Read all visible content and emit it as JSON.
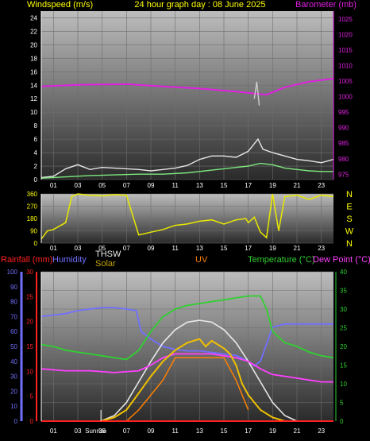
{
  "header": {
    "left_label": "Windspeed (m/s)",
    "center_title": "24 hour graph day : 08 June 2025",
    "right_label": "Barometer (mb)"
  },
  "colors": {
    "windspeed": "#e6e6e6",
    "gust": "#cccccc",
    "wind_avg": "#7de87d",
    "barometer": "#e020e0",
    "direction": "#e8e800",
    "humidity": "#7070ff",
    "thsw": "#e8e8e8",
    "solar": "#f0c000",
    "uv": "#ff8000",
    "temperature": "#30d030",
    "dewpoint": "#ff40ff",
    "rainfall": "#ff2020",
    "solar_theory": "#d0d0d0"
  },
  "lower_labels": {
    "rainfall": "Rainfall (mm)",
    "humidity": "Humidity",
    "thsw": "THSW",
    "solar": "Solar",
    "uv": "UV",
    "temperature": "Temperature (°C)",
    "dewpoint": "Dew Point (°C)",
    "sunrise": "Sunrise"
  },
  "chart_data": [
    {
      "type": "line",
      "name": "wind-barometer",
      "x_ticks": [
        "01",
        "03",
        "05",
        "07",
        "09",
        "11",
        "13",
        "15",
        "17",
        "19",
        "21",
        "23"
      ],
      "y_left_ticks": [
        0,
        2,
        4,
        6,
        8,
        10,
        12,
        14,
        16,
        18,
        20,
        22,
        24
      ],
      "y_left_range": [
        0,
        25
      ],
      "y_right_ticks": [
        975,
        980,
        985,
        990,
        995,
        1000,
        1005,
        1010,
        1015,
        1020,
        1025
      ],
      "y_right_range": [
        973.3,
        1027.5
      ],
      "series": [
        {
          "key": "barometer",
          "x": [
            0,
            3,
            7,
            10,
            13,
            16,
            18.5,
            20,
            22,
            24
          ],
          "values": [
            1003.3,
            1003.8,
            1004.0,
            1003.3,
            1002.6,
            1001.6,
            1000.6,
            1003.0,
            1004.8,
            1005.8
          ]
        },
        {
          "key": "windspeed",
          "x": [
            0,
            1,
            2,
            3,
            4,
            5,
            6,
            7,
            8,
            9,
            10,
            11,
            12,
            13,
            14,
            15,
            16,
            17,
            17.8,
            18.2,
            19,
            20,
            21,
            22,
            23,
            24
          ],
          "values": [
            0.3,
            0.5,
            1.6,
            2.2,
            1.5,
            1.8,
            1.7,
            1.6,
            1.5,
            1.3,
            1.5,
            1.7,
            2.1,
            3.0,
            3.5,
            3.5,
            3.3,
            4.2,
            6.0,
            4.5,
            4.0,
            3.5,
            3.0,
            2.8,
            2.5,
            3.0
          ]
        },
        {
          "key": "gust",
          "x": [
            17.5,
            17.7,
            17.9
          ],
          "values": [
            12.0,
            14.5,
            11.0
          ]
        },
        {
          "key": "wind_avg",
          "x": [
            0,
            2,
            4,
            6,
            8,
            10,
            12,
            13,
            14,
            15,
            16,
            17,
            18,
            19,
            20,
            21,
            22,
            23,
            24
          ],
          "values": [
            0.2,
            0.4,
            0.6,
            0.7,
            0.8,
            0.8,
            1.0,
            1.2,
            1.4,
            1.6,
            1.8,
            2.0,
            2.4,
            2.2,
            1.7,
            1.5,
            1.3,
            1.2,
            1.2
          ]
        }
      ]
    },
    {
      "type": "line",
      "name": "wind-direction",
      "x_ticks": [
        "01",
        "03",
        "05",
        "07",
        "09",
        "11",
        "13",
        "15",
        "17",
        "19",
        "21",
        "23"
      ],
      "y_ticks": [
        0,
        90,
        180,
        270,
        360
      ],
      "y_range": [
        0,
        360
      ],
      "compass": [
        "N",
        "W",
        "S",
        "E",
        "N"
      ],
      "series": [
        {
          "key": "direction",
          "x": [
            0,
            0.5,
            1,
            2,
            2.5,
            3,
            4,
            5,
            6,
            7,
            8,
            9,
            10,
            11,
            12,
            13,
            14,
            15,
            16,
            16.8,
            17,
            17.5,
            18,
            18.5,
            19,
            19.5,
            20,
            21,
            22,
            23,
            24
          ],
          "values": [
            30,
            90,
            100,
            150,
            340,
            360,
            350,
            345,
            355,
            350,
            60,
            80,
            100,
            130,
            140,
            160,
            170,
            140,
            170,
            180,
            150,
            190,
            80,
            40,
            360,
            90,
            340,
            350,
            320,
            350,
            340
          ]
        }
      ]
    },
    {
      "type": "line",
      "name": "temperature-humidity-solar",
      "x_ticks": [
        "01",
        "03",
        "05",
        "07",
        "09",
        "11",
        "13",
        "15",
        "17",
        "19",
        "21",
        "23"
      ],
      "rain_ticks": [
        0,
        5,
        10,
        15,
        20,
        25,
        30
      ],
      "rain_range": [
        0,
        30
      ],
      "humidity_ticks": [
        0,
        10,
        20,
        30,
        40,
        50,
        60,
        70,
        80,
        90,
        100
      ],
      "humidity_range": [
        0,
        100
      ],
      "temp_ticks": [
        0,
        5,
        10,
        15,
        20,
        25,
        30,
        35,
        40
      ],
      "temp_range": [
        0,
        40
      ],
      "sunrise_hour": 4.9,
      "series": [
        {
          "key": "humidity",
          "x": [
            0,
            1,
            2,
            3,
            4,
            5,
            6,
            7,
            7.8,
            8.2,
            9,
            10,
            11,
            12,
            13,
            14,
            15,
            16,
            17,
            17.5,
            18,
            19,
            20,
            21,
            22,
            23,
            24
          ],
          "values": [
            70,
            71,
            72,
            74,
            75,
            76,
            76,
            75,
            74,
            60,
            55,
            50,
            48,
            47,
            47,
            46,
            45,
            44,
            40,
            37,
            40,
            63,
            65,
            65,
            65,
            65,
            65
          ]
        },
        {
          "key": "temperature",
          "x": [
            0,
            1,
            2,
            3,
            4,
            5,
            6,
            7,
            8,
            9,
            10,
            11,
            12,
            13,
            14,
            15,
            16,
            17,
            18,
            18.5,
            19,
            20,
            21,
            22,
            23,
            24
          ],
          "values": [
            20.5,
            20,
            19,
            18.5,
            18,
            17.5,
            17,
            16.5,
            19,
            24,
            28,
            30,
            31,
            31.5,
            32,
            32.5,
            33,
            33.5,
            33.5,
            30,
            24,
            21,
            20,
            18.5,
            17.5,
            17
          ]
        },
        {
          "key": "dewpoint",
          "x": [
            0,
            2,
            4,
            6,
            8,
            9,
            10,
            11,
            12,
            13,
            14,
            15,
            16,
            17,
            18,
            19,
            20,
            21,
            22,
            23,
            24
          ],
          "values": [
            14,
            13.5,
            13.5,
            13,
            13.5,
            15,
            17,
            18,
            18,
            18,
            18,
            17.5,
            17,
            16,
            14,
            12.5,
            12,
            11.5,
            11,
            10.5,
            10.5
          ]
        },
        {
          "key": "thsw",
          "x": [
            4.9,
            6,
            7,
            8,
            9,
            10,
            11,
            12,
            13,
            14,
            15,
            16,
            17,
            18,
            19,
            20,
            21
          ],
          "values": [
            0,
            1.5,
            5,
            10.5,
            16,
            21,
            24.5,
            26.5,
            27,
            26.5,
            24.5,
            21,
            16,
            10.5,
            5,
            1.5,
            0
          ]
        },
        {
          "key": "solar",
          "x": [
            4.9,
            6,
            7,
            8,
            9,
            10,
            11,
            12,
            13,
            13.5,
            14,
            15,
            15.5,
            16,
            16.5,
            17,
            18,
            19,
            20
          ],
          "values": [
            0,
            1,
            3,
            7.5,
            12,
            16,
            19,
            21,
            22,
            20,
            21.5,
            19.5,
            18,
            15,
            10,
            7,
            3,
            1,
            0
          ]
        },
        {
          "key": "uv",
          "x": [
            7,
            8,
            9,
            10,
            11,
            12,
            13,
            14,
            15,
            16,
            17
          ],
          "values": [
            0,
            3,
            7,
            11,
            17,
            17,
            17,
            17,
            17,
            11,
            3
          ]
        },
        {
          "key": "rainfall",
          "x": [
            0,
            24
          ],
          "values": [
            0,
            0
          ]
        }
      ]
    }
  ]
}
